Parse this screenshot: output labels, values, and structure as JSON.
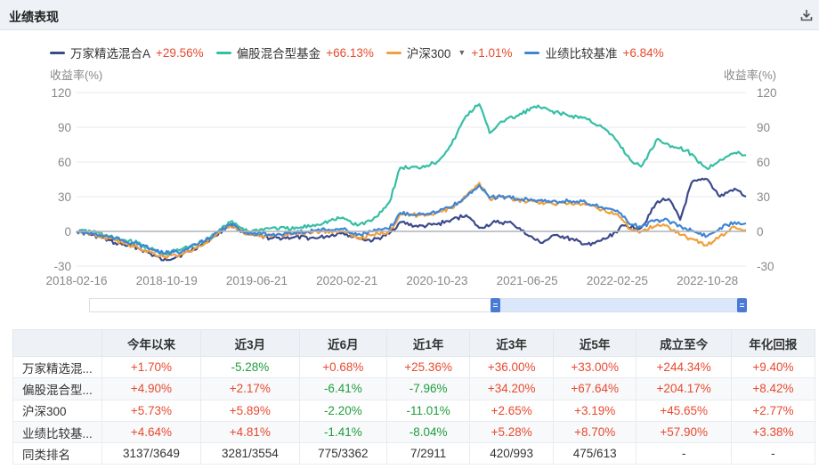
{
  "panel": {
    "title": "业绩表现"
  },
  "legend": [
    {
      "name": "万家精选混合A",
      "value": "+29.56%",
      "color": "#3c4a8c"
    },
    {
      "name": "偏股混合型基金",
      "value": "+66.13%",
      "color": "#35bfa4"
    },
    {
      "name": "沪深300",
      "value": "+1.01%",
      "color": "#f0a03c",
      "dropdown": true
    },
    {
      "name": "业绩比较基准",
      "value": "+6.84%",
      "color": "#3f86d6"
    }
  ],
  "axis": {
    "left_title": "收益率(%)",
    "right_title": "收益率(%)"
  },
  "chart_data": {
    "type": "line",
    "x_ticks": [
      "2018-02-16",
      "2018-10-19",
      "2019-06-21",
      "2020-02-21",
      "2020-10-23",
      "2021-06-25",
      "2022-02-25",
      "2022-10-28"
    ],
    "y_ticks": [
      120,
      90,
      60,
      30,
      0,
      -30
    ],
    "ylim": [
      -30,
      120
    ],
    "xlim": [
      "2018-02-16",
      "2023-02-10"
    ],
    "zero_line": true,
    "grid": "horizontal",
    "series": [
      {
        "name": "万家精选混合A",
        "color": "#3c4a8c",
        "points": [
          [
            "2018-02-16",
            0
          ],
          [
            "2018-04-01",
            -3
          ],
          [
            "2018-06-01",
            -10
          ],
          [
            "2018-08-01",
            -14
          ],
          [
            "2018-10-10",
            -25
          ],
          [
            "2018-12-01",
            -20
          ],
          [
            "2019-02-01",
            -10
          ],
          [
            "2019-04-10",
            6
          ],
          [
            "2019-06-01",
            -3
          ],
          [
            "2019-08-01",
            -6
          ],
          [
            "2019-10-01",
            -5
          ],
          [
            "2019-12-01",
            -6
          ],
          [
            "2020-02-10",
            -1
          ],
          [
            "2020-03-20",
            -6
          ],
          [
            "2020-05-01",
            -8
          ],
          [
            "2020-06-15",
            -2
          ],
          [
            "2020-07-15",
            8
          ],
          [
            "2020-09-01",
            4
          ],
          [
            "2020-10-23",
            6
          ],
          [
            "2020-12-01",
            10
          ],
          [
            "2021-01-10",
            14
          ],
          [
            "2021-02-15",
            3
          ],
          [
            "2021-04-01",
            8
          ],
          [
            "2021-05-15",
            7
          ],
          [
            "2021-06-25",
            -3
          ],
          [
            "2021-08-01",
            -10
          ],
          [
            "2021-09-15",
            -3
          ],
          [
            "2021-11-01",
            -8
          ],
          [
            "2021-12-15",
            -12
          ],
          [
            "2022-02-01",
            -5
          ],
          [
            "2022-03-15",
            5
          ],
          [
            "2022-05-01",
            3
          ],
          [
            "2022-06-15",
            26
          ],
          [
            "2022-07-15",
            28
          ],
          [
            "2022-08-15",
            10
          ],
          [
            "2022-09-15",
            42
          ],
          [
            "2022-10-28",
            45
          ],
          [
            "2022-12-01",
            30
          ],
          [
            "2023-01-10",
            37
          ],
          [
            "2023-02-10",
            30
          ]
        ]
      },
      {
        "name": "偏股混合型基金",
        "color": "#35bfa4",
        "points": [
          [
            "2018-02-16",
            0
          ],
          [
            "2018-04-01",
            0
          ],
          [
            "2018-06-01",
            -6
          ],
          [
            "2018-08-01",
            -10
          ],
          [
            "2018-10-10",
            -20
          ],
          [
            "2018-12-01",
            -15
          ],
          [
            "2019-02-01",
            -8
          ],
          [
            "2019-04-10",
            8
          ],
          [
            "2019-06-01",
            0
          ],
          [
            "2019-08-01",
            3
          ],
          [
            "2019-10-01",
            2
          ],
          [
            "2019-12-01",
            6
          ],
          [
            "2020-02-10",
            12
          ],
          [
            "2020-03-20",
            5
          ],
          [
            "2020-05-01",
            10
          ],
          [
            "2020-06-15",
            25
          ],
          [
            "2020-07-15",
            55
          ],
          [
            "2020-09-01",
            55
          ],
          [
            "2020-10-23",
            60
          ],
          [
            "2020-12-01",
            75
          ],
          [
            "2021-01-10",
            100
          ],
          [
            "2021-02-15",
            110
          ],
          [
            "2021-03-15",
            85
          ],
          [
            "2021-04-15",
            95
          ],
          [
            "2021-06-01",
            100
          ],
          [
            "2021-07-15",
            108
          ],
          [
            "2021-09-01",
            104
          ],
          [
            "2021-10-15",
            100
          ],
          [
            "2021-12-01",
            98
          ],
          [
            "2022-01-15",
            90
          ],
          [
            "2022-02-25",
            78
          ],
          [
            "2022-04-01",
            62
          ],
          [
            "2022-05-01",
            56
          ],
          [
            "2022-06-15",
            80
          ],
          [
            "2022-07-15",
            75
          ],
          [
            "2022-09-01",
            70
          ],
          [
            "2022-10-28",
            54
          ],
          [
            "2022-12-01",
            62
          ],
          [
            "2023-01-10",
            68
          ],
          [
            "2023-02-10",
            66
          ]
        ]
      },
      {
        "name": "沪深300",
        "color": "#f0a03c",
        "points": [
          [
            "2018-02-16",
            0
          ],
          [
            "2018-04-01",
            -2
          ],
          [
            "2018-06-01",
            -8
          ],
          [
            "2018-08-01",
            -14
          ],
          [
            "2018-10-10",
            -22
          ],
          [
            "2018-12-01",
            -20
          ],
          [
            "2019-02-01",
            -10
          ],
          [
            "2019-04-10",
            5
          ],
          [
            "2019-06-01",
            -3
          ],
          [
            "2019-08-01",
            -4
          ],
          [
            "2019-10-01",
            -2
          ],
          [
            "2019-12-01",
            0
          ],
          [
            "2020-02-10",
            0
          ],
          [
            "2020-03-20",
            -6
          ],
          [
            "2020-05-01",
            -3
          ],
          [
            "2020-06-15",
            0
          ],
          [
            "2020-07-15",
            15
          ],
          [
            "2020-09-01",
            14
          ],
          [
            "2020-10-23",
            16
          ],
          [
            "2020-12-01",
            20
          ],
          [
            "2021-01-10",
            30
          ],
          [
            "2021-02-15",
            42
          ],
          [
            "2021-03-15",
            28
          ],
          [
            "2021-04-15",
            30
          ],
          [
            "2021-06-01",
            27
          ],
          [
            "2021-07-15",
            26
          ],
          [
            "2021-09-01",
            24
          ],
          [
            "2021-10-15",
            24
          ],
          [
            "2021-12-01",
            23
          ],
          [
            "2022-01-15",
            19
          ],
          [
            "2022-02-25",
            15
          ],
          [
            "2022-04-01",
            2
          ],
          [
            "2022-05-01",
            0
          ],
          [
            "2022-06-15",
            6
          ],
          [
            "2022-07-15",
            4
          ],
          [
            "2022-09-01",
            -5
          ],
          [
            "2022-10-28",
            -12
          ],
          [
            "2022-12-01",
            -4
          ],
          [
            "2023-01-10",
            4
          ],
          [
            "2023-02-10",
            1
          ]
        ]
      },
      {
        "name": "业绩比较基准",
        "color": "#3f86d6",
        "points": [
          [
            "2018-02-16",
            0
          ],
          [
            "2018-04-01",
            -2
          ],
          [
            "2018-06-01",
            -6
          ],
          [
            "2018-08-01",
            -11
          ],
          [
            "2018-10-10",
            -19
          ],
          [
            "2018-12-01",
            -17
          ],
          [
            "2019-02-01",
            -8
          ],
          [
            "2019-04-10",
            6
          ],
          [
            "2019-06-01",
            -2
          ],
          [
            "2019-08-01",
            -3
          ],
          [
            "2019-10-01",
            -1
          ],
          [
            "2019-12-01",
            1
          ],
          [
            "2020-02-10",
            2
          ],
          [
            "2020-03-20",
            -3
          ],
          [
            "2020-05-01",
            0
          ],
          [
            "2020-06-15",
            2
          ],
          [
            "2020-07-15",
            16
          ],
          [
            "2020-09-01",
            15
          ],
          [
            "2020-10-23",
            17
          ],
          [
            "2020-12-01",
            21
          ],
          [
            "2021-01-10",
            30
          ],
          [
            "2021-02-15",
            40
          ],
          [
            "2021-03-15",
            29
          ],
          [
            "2021-04-15",
            30
          ],
          [
            "2021-06-01",
            28
          ],
          [
            "2021-07-15",
            27
          ],
          [
            "2021-09-01",
            26
          ],
          [
            "2021-10-15",
            26
          ],
          [
            "2021-12-01",
            25
          ],
          [
            "2022-01-15",
            21
          ],
          [
            "2022-02-25",
            18
          ],
          [
            "2022-04-01",
            6
          ],
          [
            "2022-05-01",
            4
          ],
          [
            "2022-06-15",
            10
          ],
          [
            "2022-07-15",
            9
          ],
          [
            "2022-09-01",
            2
          ],
          [
            "2022-10-28",
            -4
          ],
          [
            "2022-12-01",
            3
          ],
          [
            "2023-01-10",
            8
          ],
          [
            "2023-02-10",
            7
          ]
        ]
      }
    ]
  },
  "slider": {
    "range_start": 0.62,
    "range_end": 1.0
  },
  "table": {
    "headers": [
      "",
      "今年以来",
      "近3月",
      "近6月",
      "近1年",
      "近3年",
      "近5年",
      "成立至今",
      "年化回报"
    ],
    "rows": [
      {
        "name": "万家精选混...",
        "cells": [
          "+1.70%",
          "-5.28%",
          "+0.68%",
          "+25.36%",
          "+36.00%",
          "+33.00%",
          "+244.34%",
          "+9.40%"
        ]
      },
      {
        "name": "偏股混合型...",
        "cells": [
          "+4.90%",
          "+2.17%",
          "-6.41%",
          "-7.96%",
          "+34.20%",
          "+67.64%",
          "+204.17%",
          "+8.42%"
        ]
      },
      {
        "name": "沪深300",
        "cells": [
          "+5.73%",
          "+5.89%",
          "-2.20%",
          "-11.01%",
          "+2.65%",
          "+3.19%",
          "+45.65%",
          "+2.77%"
        ]
      },
      {
        "name": "业绩比较基...",
        "cells": [
          "+4.64%",
          "+4.81%",
          "-1.41%",
          "-8.04%",
          "+5.28%",
          "+8.70%",
          "+57.90%",
          "+3.38%"
        ]
      },
      {
        "name": "同类排名",
        "cells": [
          "3137/3649",
          "3281/3554",
          "775/3362",
          "7/2911",
          "420/993",
          "475/613",
          "-",
          "-"
        ]
      }
    ]
  }
}
